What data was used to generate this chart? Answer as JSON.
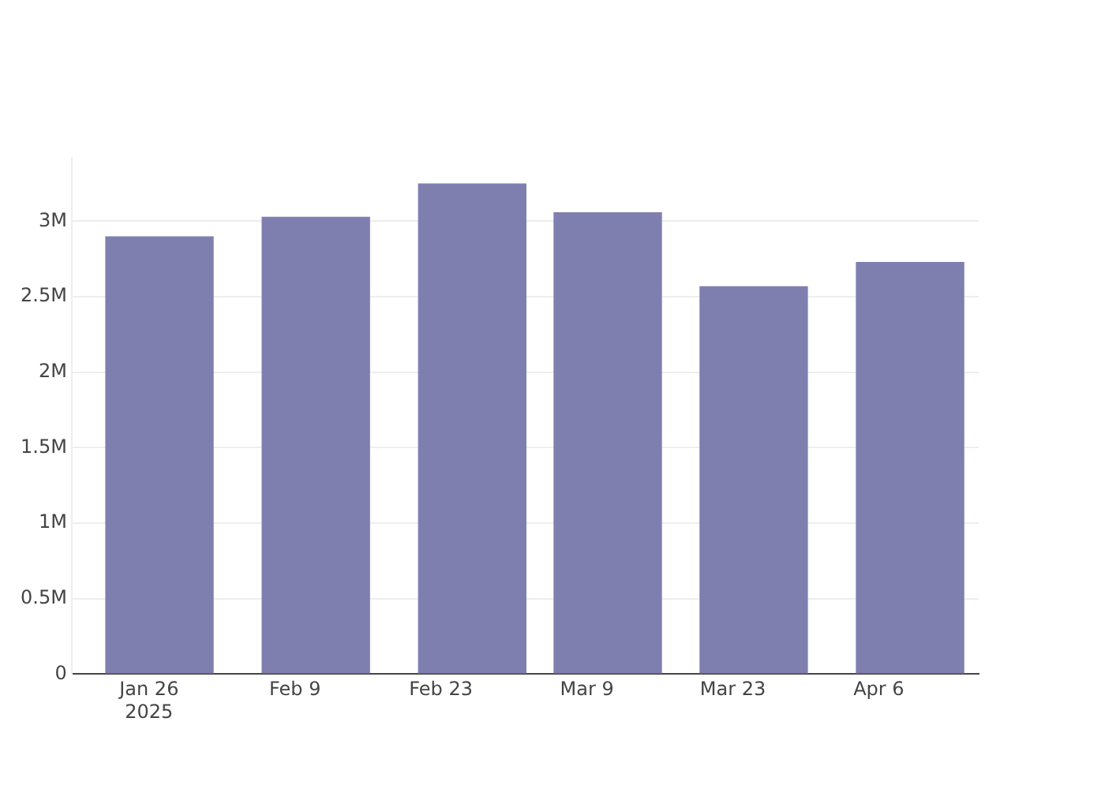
{
  "chart_data": {
    "type": "bar",
    "x": [
      "2025-01-27",
      "2025-02-11",
      "2025-02-26",
      "2025-03-11",
      "2025-03-25",
      "2025-04-09"
    ],
    "values": [
      2900000,
      3030000,
      3250000,
      3060000,
      2570000,
      2730000
    ],
    "color": "#7f7faf",
    "xlim": [
      "2025-01-18T14:00",
      "2025-04-15T14:00"
    ],
    "xticks": [
      {
        "value": "2025-01-26",
        "label": "Jan 26\n2025"
      },
      {
        "value": "2025-02-09",
        "label": "Feb 9"
      },
      {
        "value": "2025-02-23",
        "label": "Feb 23"
      },
      {
        "value": "2025-03-09",
        "label": "Mar 9"
      },
      {
        "value": "2025-03-23",
        "label": "Mar 23"
      },
      {
        "value": "2025-04-06",
        "label": "Apr 6"
      }
    ],
    "ylim": [
      0,
      3420000
    ],
    "yticks": [
      {
        "value": 0,
        "label": "0"
      },
      {
        "value": 500000,
        "label": "0.5M"
      },
      {
        "value": 1000000,
        "label": "1M"
      },
      {
        "value": 1500000,
        "label": "1.5M"
      },
      {
        "value": 2000000,
        "label": "2M"
      },
      {
        "value": 2500000,
        "label": "2.5M"
      },
      {
        "value": 3000000,
        "label": "3M"
      }
    ],
    "grid": "y",
    "legend": false
  }
}
